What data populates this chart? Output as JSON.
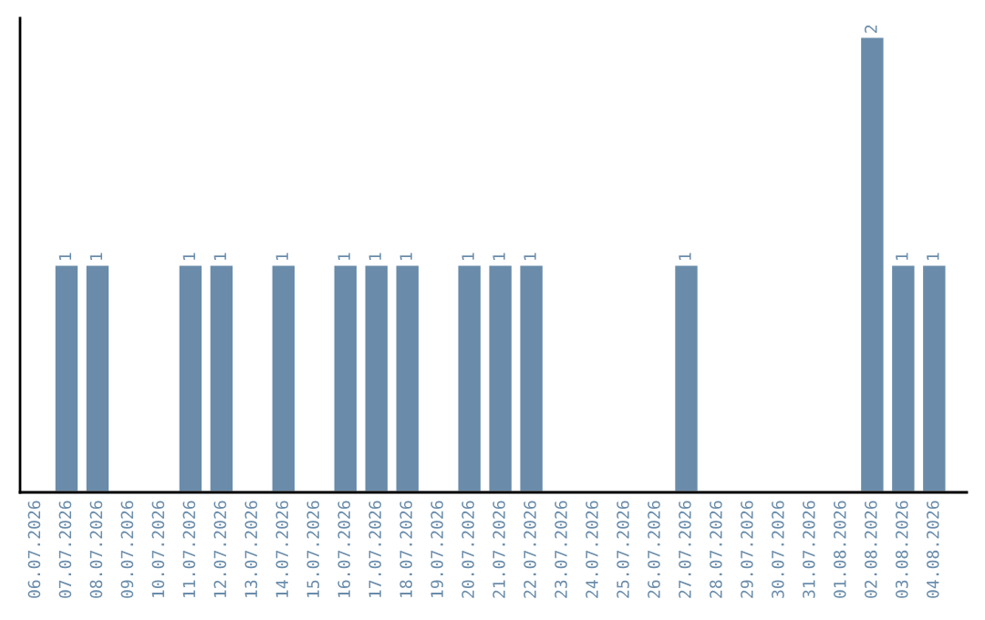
{
  "chart_data": {
    "type": "bar",
    "categories": [
      "06.07.2026",
      "07.07.2026",
      "08.07.2026",
      "09.07.2026",
      "10.07.2026",
      "11.07.2026",
      "12.07.2026",
      "13.07.2026",
      "14.07.2026",
      "15.07.2026",
      "16.07.2026",
      "17.07.2026",
      "18.07.2026",
      "19.07.2026",
      "20.07.2026",
      "21.07.2026",
      "22.07.2026",
      "23.07.2026",
      "24.07.2026",
      "25.07.2026",
      "26.07.2026",
      "27.07.2026",
      "28.07.2026",
      "29.07.2026",
      "30.07.2026",
      "31.07.2026",
      "01.08.2026",
      "02.08.2026",
      "03.08.2026",
      "04.08.2026"
    ],
    "values": [
      0,
      1,
      1,
      0,
      0,
      1,
      1,
      0,
      1,
      0,
      1,
      1,
      1,
      0,
      1,
      1,
      1,
      0,
      0,
      0,
      0,
      1,
      0,
      0,
      0,
      0,
      0,
      2,
      1,
      1
    ],
    "value_labels": [
      null,
      "1",
      "1",
      null,
      null,
      "1",
      "1",
      null,
      "1",
      null,
      "1",
      "1",
      "1",
      null,
      "1",
      "1",
      "1",
      null,
      null,
      null,
      null,
      "1",
      null,
      null,
      null,
      null,
      null,
      "2",
      "1",
      "1"
    ],
    "color": "#6a8caa",
    "ylim": [
      0,
      2.08
    ],
    "tick_labels": "x",
    "grid": false,
    "legend": false
  }
}
